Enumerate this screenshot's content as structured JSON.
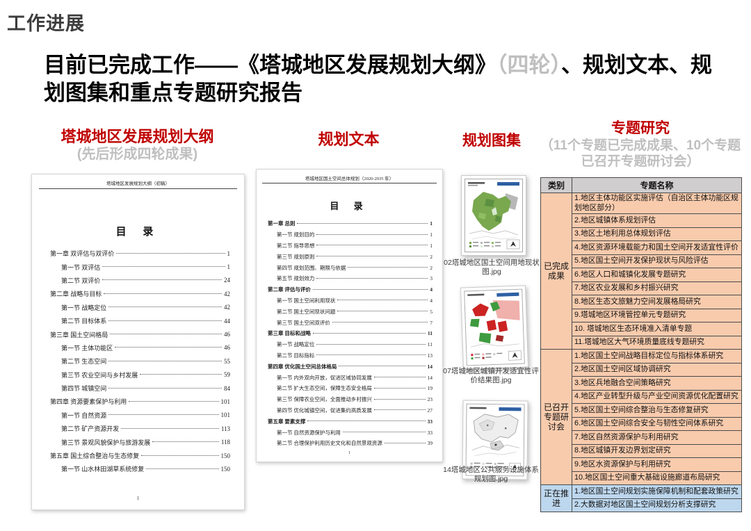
{
  "page_title": "工作进展",
  "heading": {
    "prefix": "目前已完成工作——《塔城地区发展规划大纲》",
    "muted": "（四轮）",
    "suffix": "、规划文本、规划图集和重点专题研究报告"
  },
  "colors": {
    "accent_red": "#c00000",
    "muted_gray": "#bfbfbf",
    "table_header_bg": "#d0cece",
    "done_row_bg": "#f8cbad",
    "inprogress_row_bg": "#bdd7ee"
  },
  "outline_column": {
    "title": "塔城地区发展规划大纲",
    "subtitle": "(先后形成四轮成果)",
    "doc_header": "塔城地区发展规划大纲（初稿）",
    "toc_title": "目  录",
    "page_number": "1",
    "toc": [
      {
        "level": "c",
        "label": "第一章 双评估与双评价",
        "page": "1"
      },
      {
        "level": "s",
        "label": "第一节 双评估",
        "page": "1"
      },
      {
        "level": "s",
        "label": "第二节 双评价",
        "page": "24"
      },
      {
        "level": "c",
        "label": "第二章 战略与目标",
        "page": "42"
      },
      {
        "level": "s",
        "label": "第一节 战略定位",
        "page": "42"
      },
      {
        "level": "s",
        "label": "第二节 目标体系",
        "page": "44"
      },
      {
        "level": "c",
        "label": "第三章 国土空间格局",
        "page": "46"
      },
      {
        "level": "s",
        "label": "第一节 主体功能区",
        "page": "46"
      },
      {
        "level": "s",
        "label": "第二节 生态空间",
        "page": "55"
      },
      {
        "level": "s",
        "label": "第三节 农业空间与乡村发展",
        "page": "59"
      },
      {
        "level": "s",
        "label": "第四节 城镇空间",
        "page": "84"
      },
      {
        "level": "c",
        "label": "第四章 资源要素保护与利用",
        "page": "101"
      },
      {
        "level": "s",
        "label": "第一节 自然资源",
        "page": "101"
      },
      {
        "level": "s",
        "label": "第二节 矿产资源开发",
        "page": "113"
      },
      {
        "level": "s",
        "label": "第三节 景观风貌保护与旅游发展",
        "page": "118"
      },
      {
        "level": "c",
        "label": "第五章 国土综合整治与生态修复",
        "page": "150"
      },
      {
        "level": "s",
        "label": "第一节 山水林田湖草系统修复",
        "page": "150"
      }
    ]
  },
  "text_column": {
    "title": "规划文本",
    "doc_header": "塔城地区国土空间总体规划（2020-2035 年）",
    "toc_title": "目  录",
    "page_number": "1",
    "toc": [
      {
        "level": "c",
        "label": "第一章 总则",
        "page": "1"
      },
      {
        "level": "s",
        "label": "第一节 规划目的",
        "page": "1"
      },
      {
        "level": "s",
        "label": "第二节 指导思想",
        "page": "1"
      },
      {
        "level": "s",
        "label": "第三节 规划原则",
        "page": "2"
      },
      {
        "level": "s",
        "label": "第四节 规划范围、期限与依据",
        "page": "2"
      },
      {
        "level": "s",
        "label": "第五节 规划效力",
        "page": "3"
      },
      {
        "level": "c",
        "label": "第二章 评估与评价",
        "page": "4"
      },
      {
        "level": "s",
        "label": "第一节 国土空间利用现状",
        "page": "4"
      },
      {
        "level": "s",
        "label": "第二节 国土空间现状问题",
        "page": "5"
      },
      {
        "level": "s",
        "label": "第三节 国土空间双评价",
        "page": "7"
      },
      {
        "level": "c",
        "label": "第三章 目标和战略",
        "page": "11"
      },
      {
        "level": "s",
        "label": "第一节 战略定位",
        "page": "11"
      },
      {
        "level": "s",
        "label": "第二节 目标指标",
        "page": "13"
      },
      {
        "level": "c",
        "label": "第四章 优化国土空间总体格局",
        "page": "14"
      },
      {
        "level": "s",
        "label": "第一节 内外双向开放，促进区域协同发展",
        "page": "14"
      },
      {
        "level": "s",
        "label": "第二节 扩大生态空间，保障生态安全格局",
        "page": "19"
      },
      {
        "level": "s",
        "label": "第三节 保障农业空间，全面推动乡村振兴",
        "page": "23"
      },
      {
        "level": "s",
        "label": "第四节 优化城镇空间，促进集约高质发展",
        "page": "27"
      },
      {
        "level": "c",
        "label": "第五章 要素支撑",
        "page": "33"
      },
      {
        "level": "s",
        "label": "第一节 自然资源保护与利用",
        "page": "33"
      },
      {
        "level": "s",
        "label": "第二节 合理保护利用历史文化和自然景观资源",
        "page": "39"
      }
    ]
  },
  "atlas_column": {
    "title": "规划图集",
    "maps": [
      {
        "caption": "02塔城地区国土空间用地现状图.jpg"
      },
      {
        "caption": "07塔城地区城镇开发适宜性评价结果图.jpg"
      },
      {
        "caption": "14塔城地区公共服务设施体系规划图.jpg"
      }
    ]
  },
  "topics_column": {
    "title": "专题研究",
    "subtitle": "（11个专题已完成成果、10个专题已召开专题研讨会）",
    "table": {
      "headers": [
        "类别",
        "专题名称"
      ],
      "groups": [
        {
          "category": "已完成成果",
          "bg": "#f8cbad",
          "items": [
            "1.地区主体功能区实施评估（自治区主体功能区规划地区部分）",
            "2.地区城镇体系规划评估",
            "3.地区土地利用总体规划评估",
            "4.地区资源环境载能力和国土空间开发适宜性评价",
            "5.地区国土空间开发保护现状与风险评估",
            "6.地区人口和城镇化发展专题研究",
            "7.地区农业发展和乡村振兴研究",
            "8.地区生态文旅魅力空间发展格局研究",
            "9.塔城地区环境管控单元专题研究",
            "10. 塔城地区生态环境准入清单专题",
            "11.塔城地区大气环境质量底线专题研究"
          ]
        },
        {
          "category": "已召开专题研讨会",
          "bg": "#f8cbad",
          "items": [
            "1.地区国土空间战略目标定位与指标体系研究",
            "2.地区国土空间区域协调研究",
            "3.地区兵地融合空间策略研究",
            "4.地区产业转型升级与产业空间资源优化配置研究",
            "5.地区国土空间综合整治与生态修复研究",
            "6.地区国土空间综合安全与韧性空间体系研究",
            "7.地区自然资源保护与利用研究",
            "8.地区城镇开发边界划定研究",
            "9.地区水资源保护与利用研究",
            "10.地区国土空间重大基础设施廊道布局研究"
          ]
        },
        {
          "category": "正在推进",
          "bg": "#bdd7ee",
          "items": [
            "1.地区国土空间规划实施保障机制和配套政策研究",
            "2.大数据对地区国土空间规划分析支撑研究"
          ]
        }
      ]
    }
  }
}
